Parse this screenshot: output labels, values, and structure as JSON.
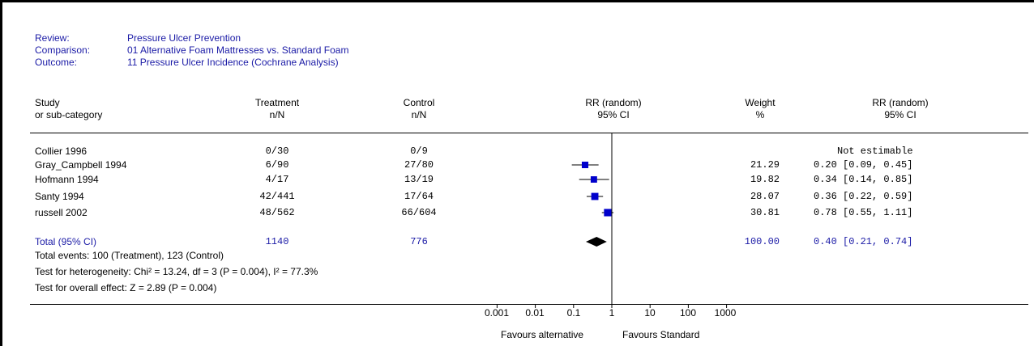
{
  "header": {
    "review_label": "Review:",
    "review_value": "Pressure Ulcer Prevention",
    "comparison_label": "Comparison:",
    "comparison_value": "01 Alternative Foam Mattresses vs. Standard Foam",
    "outcome_label": "Outcome:",
    "outcome_value": "11 Pressure Ulcer Incidence (Cochrane Analysis)"
  },
  "columns": {
    "study_1": "Study",
    "study_2": "or sub-category",
    "treatment_1": "Treatment",
    "treatment_2": "n/N",
    "control_1": "Control",
    "control_2": "n/N",
    "rr_1": "RR (random)",
    "rr_2": "95% CI",
    "weight_1": "Weight",
    "weight_2": "%",
    "rrv_1": "RR (random)",
    "rrv_2": "95% CI"
  },
  "rows": [
    {
      "study": "Collier 1996",
      "treatment": "0/30",
      "control": "0/9",
      "weight": "",
      "rr_text": "Not estimable"
    },
    {
      "study": "Gray_Campbell 1994",
      "treatment": "6/90",
      "control": "27/80",
      "weight": "21.29",
      "rr_text": "0.20 [0.09, 0.45]"
    },
    {
      "study": "Hofmann 1994",
      "treatment": "4/17",
      "control": "13/19",
      "weight": "19.82",
      "rr_text": "0.34 [0.14, 0.85]"
    },
    {
      "study": "Santy 1994",
      "treatment": "42/441",
      "control": "17/64",
      "weight": "28.07",
      "rr_text": "0.36 [0.22, 0.59]"
    },
    {
      "study": "russell 2002",
      "treatment": "48/562",
      "control": "66/604",
      "weight": "30.81",
      "rr_text": "0.78 [0.55, 1.11]"
    }
  ],
  "total": {
    "label": "Total (95% CI)",
    "treatment": "1140",
    "control": "776",
    "weight": "100.00",
    "rr_text": "0.40 [0.21, 0.74]",
    "events": "Total events: 100 (Treatment), 123 (Control)",
    "heterogeneity": "Test for heterogeneity: Chi² = 13.24, df = 3 (P = 0.004), I² = 77.3%",
    "overall": "Test for overall effect: Z = 2.89 (P = 0.004)"
  },
  "colors": {
    "text": "#000000",
    "accent": "#1a1aa6",
    "square": "#0000cc"
  },
  "chart_data": {
    "type": "forest",
    "x_scale": "log",
    "xlim": [
      0.001,
      1000
    ],
    "tick_labels": [
      "0.001",
      "0.01",
      "0.1",
      "1",
      "10",
      "100",
      "1000"
    ],
    "tick_values": [
      0.001,
      0.01,
      0.1,
      1,
      10,
      100,
      1000
    ],
    "xlabel_left": "Favours alternative",
    "xlabel_right": "Favours Standard",
    "studies": [
      {
        "name": "Collier 1996",
        "rr": null,
        "lo": null,
        "hi": null,
        "weight": null
      },
      {
        "name": "Gray_Campbell 1994",
        "rr": 0.2,
        "lo": 0.09,
        "hi": 0.45,
        "weight": 21.29
      },
      {
        "name": "Hofmann 1994",
        "rr": 0.34,
        "lo": 0.14,
        "hi": 0.85,
        "weight": 19.82
      },
      {
        "name": "Santy 1994",
        "rr": 0.36,
        "lo": 0.22,
        "hi": 0.59,
        "weight": 28.07
      },
      {
        "name": "russell 2002",
        "rr": 0.78,
        "lo": 0.55,
        "hi": 1.11,
        "weight": 30.81
      }
    ],
    "pooled": {
      "rr": 0.4,
      "lo": 0.21,
      "hi": 0.74,
      "weight": 100.0
    }
  }
}
